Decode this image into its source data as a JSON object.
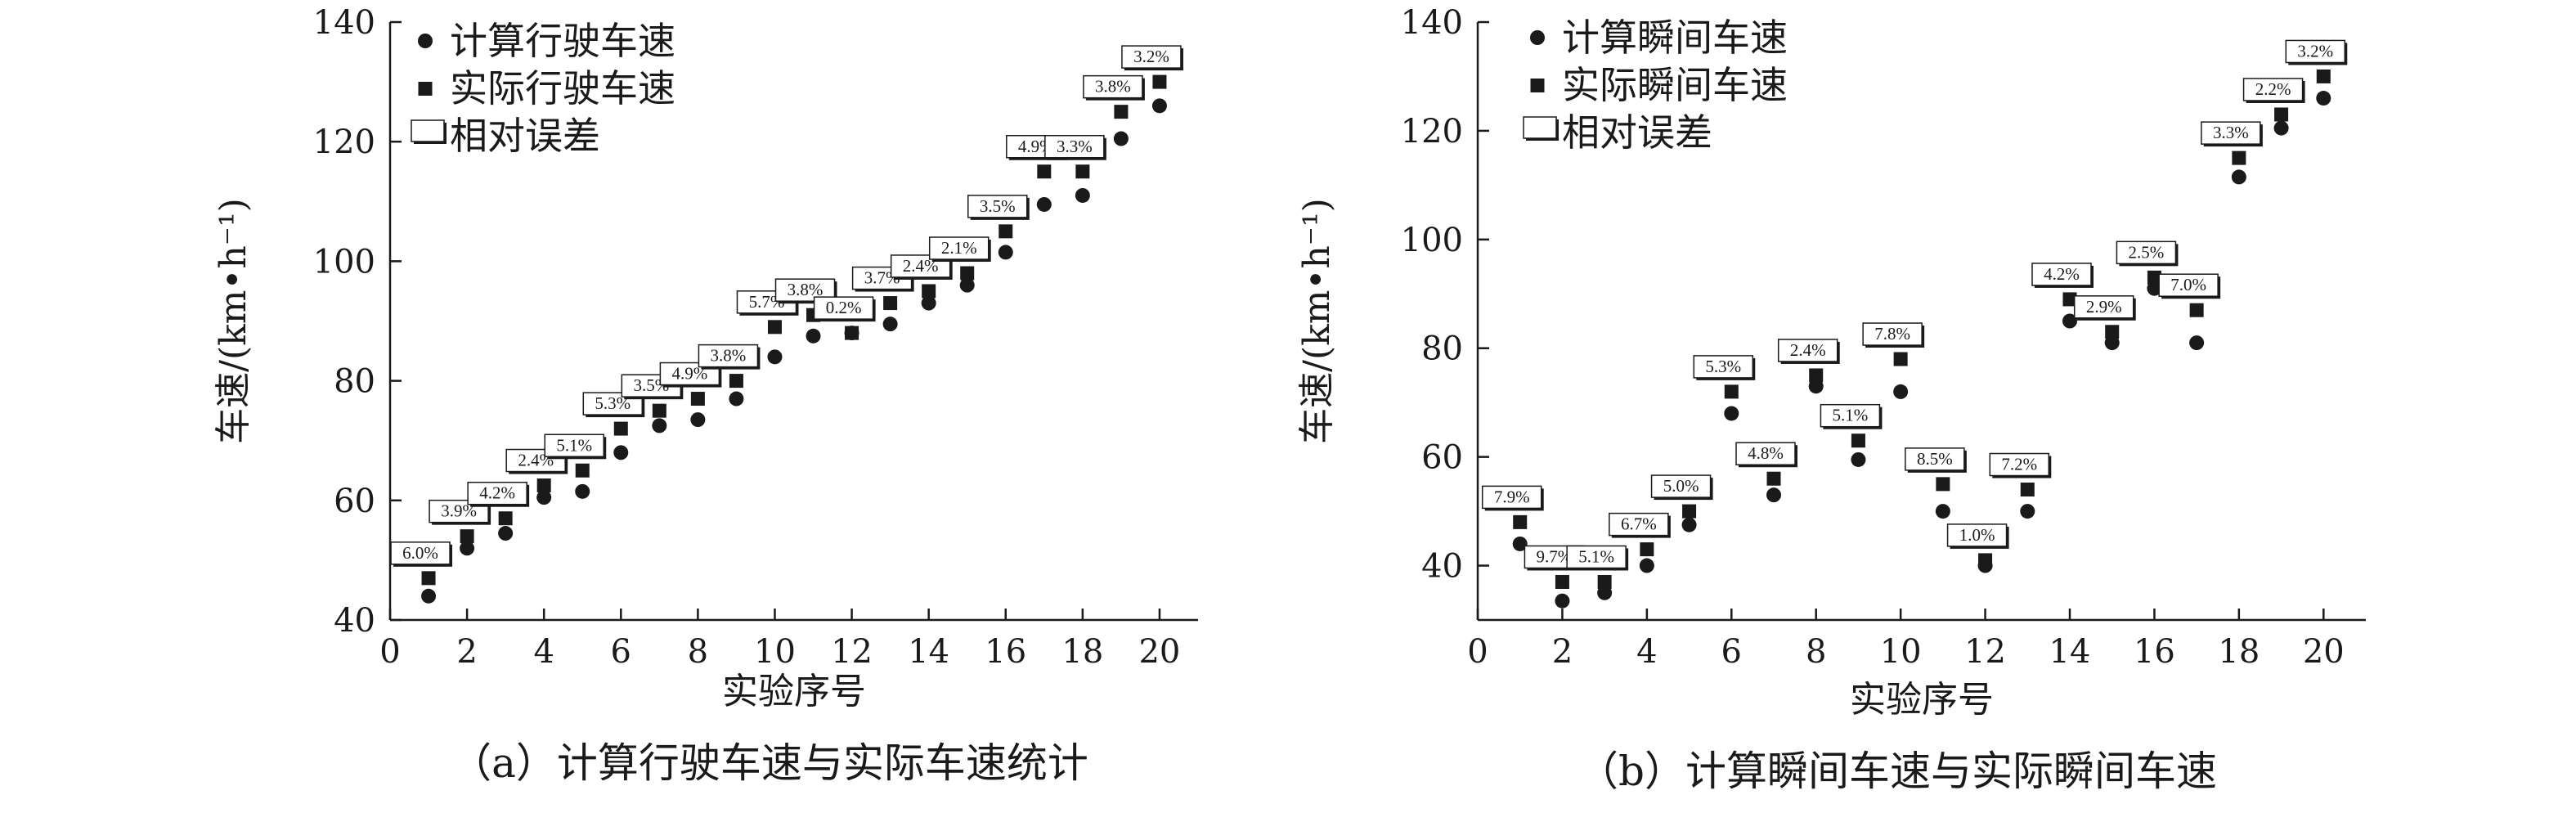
{
  "chart_data": [
    {
      "type": "scatter",
      "caption": "（a）计算行驶车速与实际车速统计",
      "xlabel": "实验序号",
      "ylabel": "车速/(km•h⁻¹)",
      "xlim": [
        0,
        21
      ],
      "ylim": [
        40,
        140
      ],
      "xticks": [
        0,
        2,
        4,
        6,
        8,
        10,
        12,
        14,
        16,
        18,
        20
      ],
      "yticks": [
        40,
        60,
        80,
        100,
        120,
        140
      ],
      "grid": false,
      "legend_position": "top-left",
      "legend": [
        "计算行驶车速",
        "实际行驶车速",
        "相对误差"
      ],
      "x": [
        1,
        2,
        3,
        4,
        5,
        6,
        7,
        8,
        9,
        10,
        11,
        12,
        13,
        14,
        15,
        16,
        17,
        18,
        19,
        20
      ],
      "series": [
        {
          "name": "计算行驶车速",
          "marker": "circle",
          "values": [
            44,
            52,
            54.5,
            60.5,
            61.5,
            68,
            72.5,
            73.5,
            77,
            84,
            87.5,
            88,
            89.5,
            93,
            96,
            101.5,
            109.5,
            111,
            120.5,
            126
          ]
        },
        {
          "name": "实际行驶车速",
          "marker": "square",
          "values": [
            47,
            54,
            57,
            62.5,
            65,
            72,
            75,
            77,
            80,
            89,
            91,
            88,
            93,
            95,
            98,
            105,
            115,
            115,
            125,
            130
          ]
        },
        {
          "name": "相对误差",
          "labels": [
            "6.0%",
            "3.9%",
            "4.2%",
            "2.4%",
            "5.1%",
            "5.3%",
            "3.5%",
            "4.9%",
            "3.8%",
            "5.7%",
            "3.8%",
            "0.2%",
            "3.7%",
            "2.4%",
            "2.1%",
            "3.5%",
            "4.9%",
            "3.3%",
            "3.8%",
            "3.2%"
          ]
        }
      ]
    },
    {
      "type": "scatter",
      "caption": "（b）计算瞬间车速与实际瞬间车速",
      "xlabel": "实验序号",
      "ylabel": "车速/(km•h⁻¹)",
      "xlim": [
        0,
        21
      ],
      "ylim": [
        30,
        140
      ],
      "xticks": [
        0,
        2,
        4,
        6,
        8,
        10,
        12,
        14,
        16,
        18,
        20
      ],
      "yticks": [
        40,
        60,
        80,
        100,
        120,
        140
      ],
      "grid": false,
      "legend_position": "top-left",
      "legend": [
        "计算瞬间车速",
        "实际瞬间车速",
        "相对误差"
      ],
      "x": [
        1,
        2,
        3,
        4,
        5,
        6,
        7,
        8,
        9,
        10,
        11,
        12,
        13,
        14,
        15,
        16,
        17,
        18,
        19,
        20
      ],
      "series": [
        {
          "name": "计算瞬间车速",
          "marker": "circle",
          "values": [
            44,
            33.5,
            35,
            40,
            47.5,
            68,
            53,
            73,
            59.5,
            72,
            50,
            40,
            50,
            85,
            81,
            91,
            81,
            111.5,
            120.5,
            126
          ]
        },
        {
          "name": "实际瞬间车速",
          "marker": "square",
          "values": [
            48,
            37,
            37,
            43,
            50,
            72,
            56,
            75,
            63,
            78,
            55,
            41,
            54,
            89,
            83,
            93,
            87,
            115,
            123,
            130
          ]
        },
        {
          "name": "相对误差",
          "labels": [
            "7.9%",
            "9.7%",
            "5.1%",
            "6.7%",
            "5.0%",
            "5.3%",
            "4.8%",
            "2.4%",
            "5.1%",
            "7.8%",
            "8.5%",
            "1.0%",
            "7.2%",
            "4.2%",
            "2.9%",
            "2.5%",
            "7.0%",
            "3.3%",
            "2.2%",
            "3.2%"
          ]
        }
      ]
    }
  ]
}
